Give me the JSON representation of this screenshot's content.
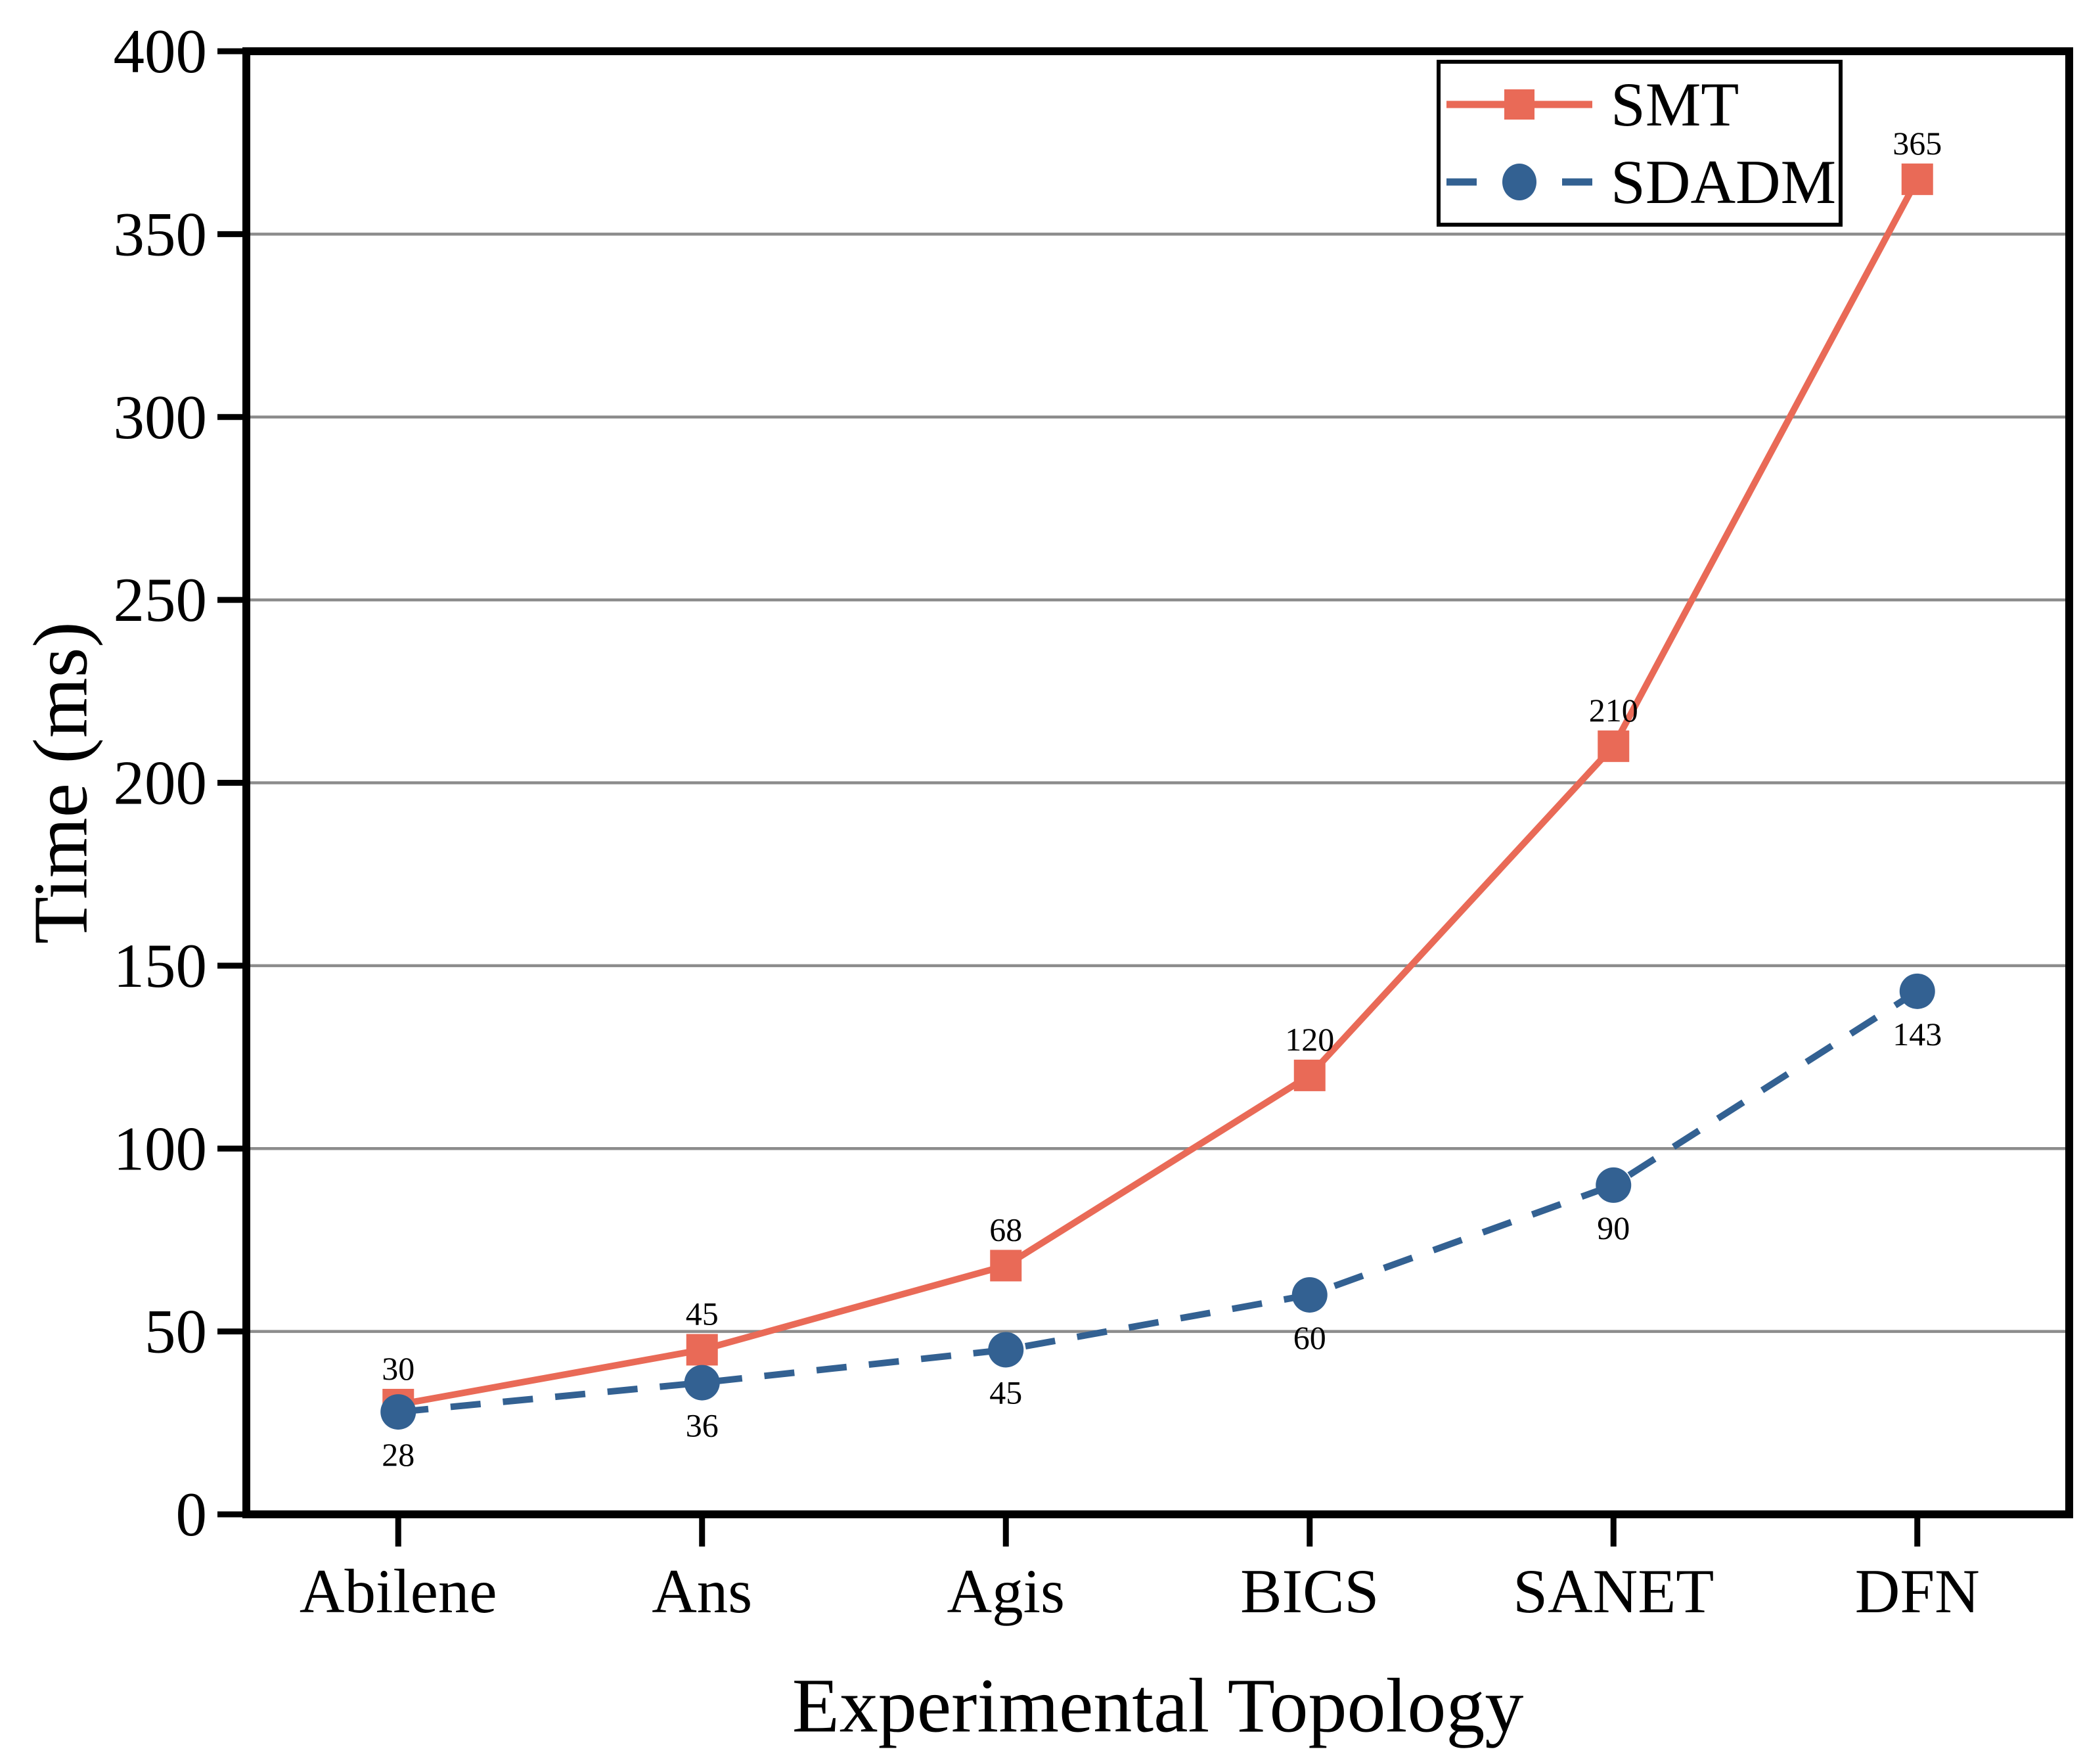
{
  "chart_data": {
    "type": "line",
    "categories": [
      "Abilene",
      "Ans",
      "Agis",
      "BICS",
      "SANET",
      "DFN"
    ],
    "series": [
      {
        "name": "SMT",
        "values": [
          30,
          45,
          68,
          120,
          210,
          365
        ],
        "color": "#E96A57",
        "line_style": "solid",
        "marker": "square",
        "label_position": "above"
      },
      {
        "name": "SDADM",
        "values": [
          28,
          36,
          45,
          60,
          90,
          143
        ],
        "color": "#336192",
        "line_style": "dashed",
        "marker": "circle",
        "label_position": "below"
      }
    ],
    "title": "",
    "xlabel": "Experimental Topology",
    "ylabel": "Time (ms)",
    "ylim": [
      0,
      400
    ],
    "yticks": [
      0,
      50,
      100,
      150,
      200,
      250,
      300,
      350,
      400
    ],
    "grid": "horizontal",
    "gridline_color": "#8C8C8C",
    "axis_color": "#000000",
    "legend_position": "top-right",
    "data_labels": true
  }
}
